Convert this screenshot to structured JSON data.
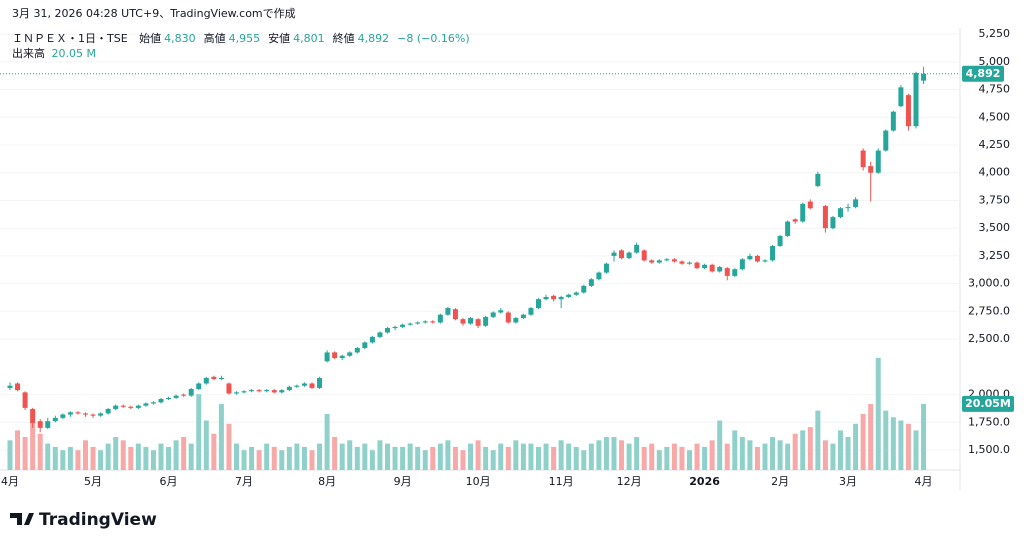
{
  "chart_data": {
    "type": "candlestick",
    "caption": "3月 31, 2026 04:28 UTC+9、TradingView.comで作成",
    "symbol": "ＩＮＰＥＸ・1日・TSE",
    "legend": [
      {
        "label": "始値",
        "value": "4,830"
      },
      {
        "label": "高値",
        "value": "4,955"
      },
      {
        "label": "安値",
        "value": "4,801"
      },
      {
        "label": "終値",
        "value": "4,892"
      }
    ],
    "change": "−8 (−0.16%)",
    "volume_label": "出来高",
    "volume_value": "20.05 M",
    "branding": "TradingView",
    "up_color": "#26a69a",
    "down_color": "#ef5350",
    "up_volume_color": "#8fd1ca",
    "down_volume_color": "#f7a9a7",
    "grid": true,
    "ylim": [
      1320,
      5305
    ],
    "yticks": [
      {
        "value": 1500,
        "label": "1,500.0"
      },
      {
        "value": 1750,
        "label": "1,750.0"
      },
      {
        "value": 2000,
        "label": "2,000.0"
      },
      {
        "value": 2500,
        "label": "2,500.0"
      },
      {
        "value": 2750,
        "label": "2,750.0"
      },
      {
        "value": 3000,
        "label": "3,000.0"
      },
      {
        "value": 3250,
        "label": "3,250"
      },
      {
        "value": 3500,
        "label": "3,500"
      },
      {
        "value": 3750,
        "label": "3,750"
      },
      {
        "value": 4000,
        "label": "4,000"
      },
      {
        "value": 4250,
        "label": "4,250"
      },
      {
        "value": 4500,
        "label": "4,500"
      },
      {
        "value": 4750,
        "label": "4,750"
      },
      {
        "value": 5000,
        "label": "5,000"
      },
      {
        "value": 5250,
        "label": "5,250"
      }
    ],
    "y2lim": [
      0,
      134
    ],
    "last_price": {
      "value": 4892,
      "label": "4,892"
    },
    "last_volume": {
      "value": 20.05,
      "label": "20.05M"
    },
    "categories": [
      "4月",
      null,
      null,
      null,
      null,
      null,
      null,
      null,
      null,
      null,
      null,
      "5月",
      null,
      null,
      null,
      null,
      null,
      null,
      null,
      null,
      null,
      "6月",
      null,
      null,
      null,
      null,
      null,
      null,
      null,
      null,
      null,
      "7月",
      null,
      null,
      null,
      null,
      null,
      null,
      null,
      null,
      null,
      null,
      "8月",
      null,
      null,
      null,
      null,
      null,
      null,
      null,
      null,
      null,
      "9月",
      null,
      null,
      null,
      null,
      null,
      null,
      null,
      null,
      null,
      "10月",
      null,
      null,
      null,
      null,
      null,
      null,
      null,
      null,
      null,
      null,
      "11月",
      null,
      null,
      null,
      null,
      null,
      null,
      null,
      null,
      "12月",
      null,
      null,
      null,
      null,
      null,
      null,
      null,
      null,
      null,
      "2026",
      null,
      null,
      null,
      null,
      null,
      null,
      null,
      null,
      null,
      "2月",
      null,
      null,
      null,
      null,
      null,
      null,
      null,
      null,
      "3月",
      null,
      null,
      null,
      null,
      null,
      null,
      null,
      null,
      null,
      "4月"
    ],
    "ohlc": [
      [
        2060,
        2110,
        2040,
        2080
      ],
      [
        2100,
        2110,
        2030,
        2040
      ],
      [
        2020,
        2030,
        1860,
        1880
      ],
      [
        1870,
        1880,
        1700,
        1740
      ],
      [
        1760,
        1780,
        1660,
        1700
      ],
      [
        1700,
        1790,
        1690,
        1760
      ],
      [
        1760,
        1810,
        1750,
        1790
      ],
      [
        1790,
        1830,
        1780,
        1820
      ],
      [
        1820,
        1850,
        1800,
        1840
      ],
      [
        1840,
        1850,
        1820,
        1830
      ],
      [
        1830,
        1840,
        1800,
        1820
      ],
      [
        1820,
        1830,
        1790,
        1810
      ],
      [
        1810,
        1840,
        1800,
        1830
      ],
      [
        1830,
        1880,
        1820,
        1870
      ],
      [
        1870,
        1910,
        1860,
        1900
      ],
      [
        1900,
        1910,
        1880,
        1890
      ],
      [
        1890,
        1900,
        1870,
        1880
      ],
      [
        1880,
        1910,
        1870,
        1900
      ],
      [
        1900,
        1930,
        1890,
        1920
      ],
      [
        1920,
        1940,
        1910,
        1930
      ],
      [
        1930,
        1970,
        1920,
        1960
      ],
      [
        1960,
        1980,
        1950,
        1970
      ],
      [
        1970,
        2000,
        1960,
        1990
      ],
      [
        2000,
        2010,
        1980,
        1990
      ],
      [
        1990,
        2060,
        1980,
        2050
      ],
      [
        2050,
        2110,
        2040,
        2100
      ],
      [
        2100,
        2160,
        2090,
        2150
      ],
      [
        2160,
        2170,
        2130,
        2140
      ],
      [
        2140,
        2170,
        2130,
        2150
      ],
      [
        2100,
        2110,
        2000,
        2010
      ],
      [
        2010,
        2030,
        2000,
        2020
      ],
      [
        2020,
        2040,
        2010,
        2030
      ],
      [
        2030,
        2050,
        2020,
        2040
      ],
      [
        2040,
        2050,
        2020,
        2030
      ],
      [
        2030,
        2050,
        2020,
        2040
      ],
      [
        2040,
        2050,
        2010,
        2020
      ],
      [
        2020,
        2050,
        2010,
        2040
      ],
      [
        2040,
        2080,
        2030,
        2070
      ],
      [
        2070,
        2090,
        2060,
        2080
      ],
      [
        2080,
        2110,
        2070,
        2100
      ],
      [
        2100,
        2110,
        2050,
        2060
      ],
      [
        2060,
        2160,
        2050,
        2150
      ],
      [
        2300,
        2400,
        2290,
        2380
      ],
      [
        2380,
        2390,
        2320,
        2330
      ],
      [
        2330,
        2360,
        2310,
        2350
      ],
      [
        2350,
        2390,
        2340,
        2380
      ],
      [
        2380,
        2430,
        2370,
        2420
      ],
      [
        2420,
        2480,
        2410,
        2470
      ],
      [
        2470,
        2530,
        2460,
        2520
      ],
      [
        2520,
        2570,
        2510,
        2560
      ],
      [
        2560,
        2610,
        2550,
        2600
      ],
      [
        2600,
        2620,
        2580,
        2610
      ],
      [
        2610,
        2640,
        2600,
        2630
      ],
      [
        2630,
        2650,
        2620,
        2640
      ],
      [
        2640,
        2660,
        2630,
        2650
      ],
      [
        2650,
        2670,
        2640,
        2660
      ],
      [
        2660,
        2670,
        2640,
        2650
      ],
      [
        2650,
        2730,
        2640,
        2720
      ],
      [
        2720,
        2790,
        2710,
        2780
      ],
      [
        2770,
        2780,
        2670,
        2680
      ],
      [
        2680,
        2690,
        2620,
        2640
      ],
      [
        2640,
        2700,
        2630,
        2690
      ],
      [
        2680,
        2690,
        2600,
        2620
      ],
      [
        2620,
        2710,
        2610,
        2700
      ],
      [
        2700,
        2750,
        2690,
        2740
      ],
      [
        2740,
        2780,
        2730,
        2760
      ],
      [
        2740,
        2750,
        2640,
        2650
      ],
      [
        2650,
        2700,
        2640,
        2690
      ],
      [
        2690,
        2730,
        2680,
        2720
      ],
      [
        2720,
        2790,
        2710,
        2780
      ],
      [
        2780,
        2870,
        2770,
        2860
      ],
      [
        2860,
        2900,
        2850,
        2880
      ],
      [
        2890,
        2900,
        2840,
        2860
      ],
      [
        2860,
        2890,
        2780,
        2880
      ],
      [
        2880,
        2910,
        2870,
        2900
      ],
      [
        2900,
        2930,
        2890,
        2920
      ],
      [
        2920,
        2990,
        2910,
        2980
      ],
      [
        2980,
        3050,
        2970,
        3040
      ],
      [
        3040,
        3110,
        3030,
        3100
      ],
      [
        3100,
        3190,
        3090,
        3180
      ],
      [
        3250,
        3300,
        3200,
        3280
      ],
      [
        3300,
        3310,
        3220,
        3230
      ],
      [
        3230,
        3290,
        3220,
        3280
      ],
      [
        3280,
        3370,
        3270,
        3350
      ],
      [
        3300,
        3310,
        3200,
        3210
      ],
      [
        3210,
        3220,
        3180,
        3190
      ],
      [
        3190,
        3220,
        3180,
        3210
      ],
      [
        3210,
        3230,
        3200,
        3220
      ],
      [
        3220,
        3230,
        3190,
        3200
      ],
      [
        3200,
        3210,
        3170,
        3180
      ],
      [
        3180,
        3200,
        3170,
        3190
      ],
      [
        3190,
        3200,
        3130,
        3140
      ],
      [
        3140,
        3180,
        3130,
        3170
      ],
      [
        3170,
        3180,
        3100,
        3110
      ],
      [
        3110,
        3160,
        3100,
        3150
      ],
      [
        3140,
        3150,
        3030,
        3070
      ],
      [
        3070,
        3140,
        3060,
        3130
      ],
      [
        3130,
        3230,
        3120,
        3220
      ],
      [
        3220,
        3270,
        3210,
        3250
      ],
      [
        3250,
        3260,
        3190,
        3200
      ],
      [
        3200,
        3220,
        3190,
        3210
      ],
      [
        3210,
        3350,
        3200,
        3340
      ],
      [
        3340,
        3440,
        3330,
        3430
      ],
      [
        3430,
        3570,
        3420,
        3560
      ],
      [
        3580,
        3590,
        3540,
        3560
      ],
      [
        3560,
        3730,
        3550,
        3720
      ],
      [
        3740,
        3760,
        3670,
        3680
      ],
      [
        3880,
        4010,
        3870,
        3990
      ],
      [
        3700,
        3710,
        3460,
        3500
      ],
      [
        3500,
        3610,
        3490,
        3600
      ],
      [
        3600,
        3690,
        3590,
        3680
      ],
      [
        3690,
        3720,
        3650,
        3690
      ],
      [
        3690,
        3780,
        3680,
        3760
      ],
      [
        4200,
        4220,
        4020,
        4050
      ],
      [
        4060,
        4100,
        3740,
        4000
      ],
      [
        4000,
        4220,
        3990,
        4200
      ],
      [
        4200,
        4390,
        4190,
        4380
      ],
      [
        4380,
        4560,
        4370,
        4550
      ],
      [
        4600,
        4790,
        4590,
        4770
      ],
      [
        4700,
        4710,
        4380,
        4420
      ],
      [
        4420,
        4910,
        4400,
        4900
      ],
      [
        4830,
        4955,
        4801,
        4892
      ]
    ],
    "volume": [
      9,
      12,
      10,
      14,
      11,
      8,
      7,
      6,
      7,
      6,
      9,
      7,
      6,
      8,
      10,
      9,
      7,
      8,
      7,
      6,
      8,
      7,
      9,
      10,
      8,
      23,
      15,
      11,
      20,
      14,
      8,
      6,
      7,
      6,
      8,
      7,
      6,
      7,
      8,
      7,
      6,
      8,
      17,
      10,
      8,
      9,
      7,
      8,
      6,
      9,
      8,
      7,
      7,
      8,
      7,
      6,
      7,
      8,
      9,
      7,
      6,
      8,
      9,
      7,
      6,
      8,
      7,
      9,
      8,
      8,
      7,
      8,
      7,
      9,
      8,
      7,
      6,
      8,
      9,
      10,
      10,
      9,
      8,
      10,
      7,
      8,
      6,
      7,
      8,
      7,
      6,
      8,
      7,
      9,
      15,
      8,
      12,
      10,
      9,
      7,
      8,
      10,
      9,
      8,
      11,
      12,
      13,
      18,
      9,
      8,
      12,
      10,
      14,
      17,
      20,
      34,
      18,
      16,
      15,
      14,
      12,
      20.05
    ]
  }
}
